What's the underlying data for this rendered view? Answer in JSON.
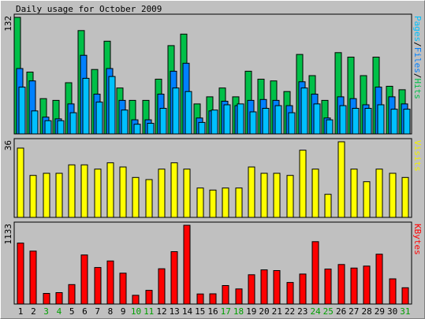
{
  "chart_data": {
    "type": "bar",
    "title": "Daily usage for October 2009",
    "categories": [
      "1",
      "2",
      "3",
      "4",
      "5",
      "6",
      "7",
      "8",
      "9",
      "10",
      "11",
      "12",
      "13",
      "14",
      "15",
      "16",
      "17",
      "18",
      "19",
      "20",
      "21",
      "22",
      "23",
      "24",
      "25",
      "26",
      "27",
      "28",
      "29",
      "30",
      "31"
    ],
    "weekend_days": [
      "3",
      "4",
      "10",
      "11",
      "17",
      "18",
      "24",
      "25",
      "31"
    ],
    "panels": [
      {
        "name": "hits-files-pages",
        "label_parts": [
          "Pages",
          "/",
          "Files",
          "/",
          "Hits"
        ],
        "label_colors": [
          "#00c0ff",
          "#000000",
          "#0080ff",
          "#000000",
          "#00c048"
        ],
        "max_label": "132",
        "ylim": [
          0,
          132
        ],
        "series": [
          {
            "name": "Hits",
            "color": "#00c048",
            "values": [
              132,
              70,
              40,
              38,
              58,
              117,
              73,
              105,
              52,
              38,
              38,
              62,
              100,
              113,
              34,
              42,
              52,
              42,
              71,
              62,
              60,
              48,
              90,
              66,
              38,
              92,
              87,
              66,
              87,
              54,
              50
            ]
          },
          {
            "name": "Files",
            "color": "#0080ff",
            "values": [
              74,
              60,
              19,
              17,
              34,
              89,
              45,
              74,
              38,
              16,
              16,
              45,
              71,
              80,
              18,
              26,
              37,
              32,
              38,
              39,
              38,
              32,
              59,
              45,
              18,
              42,
              40,
              33,
              53,
              42,
              34
            ]
          },
          {
            "name": "Pages",
            "color": "#00c0ff",
            "values": [
              53,
              26,
              15,
              15,
              24,
              63,
              36,
              65,
              27,
              11,
              12,
              29,
              52,
              48,
              13,
              27,
              33,
              34,
              25,
              29,
              32,
              24,
              52,
              34,
              16,
              32,
              29,
              29,
              33,
              28,
              28
            ]
          }
        ]
      },
      {
        "name": "visits",
        "label_parts": [
          "Visits"
        ],
        "label_colors": [
          "#f0f000"
        ],
        "max_label": "36",
        "ylim": [
          0,
          36
        ],
        "series": [
          {
            "name": "Visits",
            "color": "#ffff00",
            "values": [
              33,
              20,
              21,
              21,
              25,
              25,
              23,
              26,
              24,
              19,
              18,
              23,
              26,
              23,
              14,
              13,
              14,
              14,
              24,
              21,
              21,
              20,
              32,
              23,
              11,
              36,
              23,
              17,
              23,
              21,
              19
            ]
          }
        ]
      },
      {
        "name": "kbytes",
        "label_parts": [
          "KBytes"
        ],
        "label_colors": [
          "#ff0000"
        ],
        "max_label": "1133",
        "ylim": [
          0,
          1133
        ],
        "series": [
          {
            "name": "KBytes",
            "color": "#ff0000",
            "values": [
              877,
              761,
              153,
              164,
              280,
              706,
              526,
              620,
              444,
              126,
              197,
              508,
              753,
              1133,
              145,
              147,
              266,
              218,
              421,
              492,
              482,
              310,
              432,
              897,
              503,
              569,
              518,
              546,
              717,
              363,
              235
            ]
          }
        ]
      }
    ]
  }
}
